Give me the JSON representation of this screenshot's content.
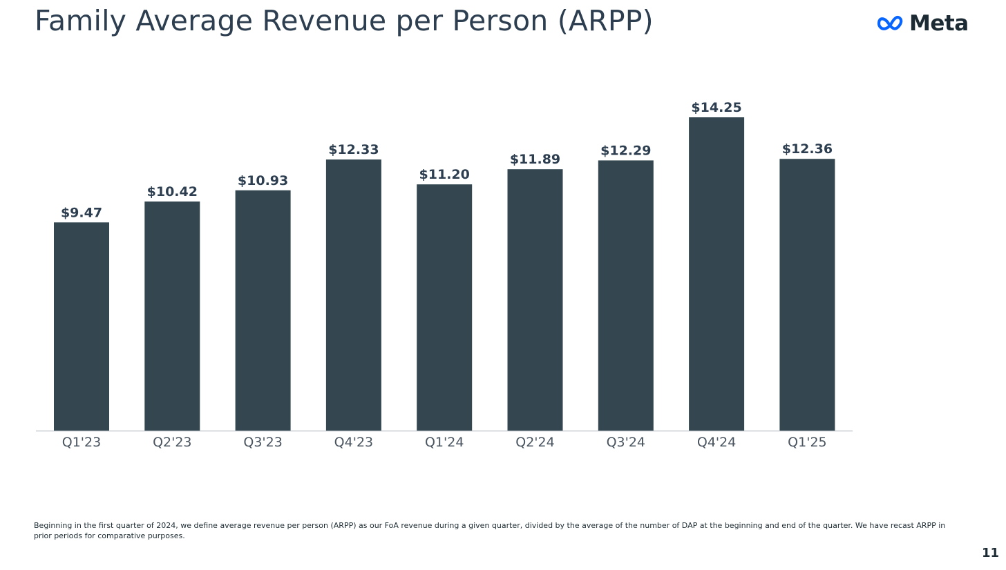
{
  "slide": {
    "title": "Family Average Revenue per Person (ARPP)",
    "logo_text": "Meta",
    "footnote": "Beginning in the first quarter of 2024, we define average revenue per person (ARPP) as our FoA revenue during a given quarter, divided by the average of the number of DAP at the beginning and end of the quarter. We have recast ARPP in prior periods for comparative purposes.",
    "page_number": "11"
  },
  "colors": {
    "bar": "#344751",
    "axis": "#c8cdd1",
    "logo_blue": "#0866ff"
  },
  "chart_data": {
    "type": "bar",
    "title": "",
    "xlabel": "",
    "ylabel": "",
    "categories": [
      "Q1'23",
      "Q2'23",
      "Q3'23",
      "Q4'23",
      "Q1'24",
      "Q2'24",
      "Q3'24",
      "Q4'24",
      "Q1'25"
    ],
    "values": [
      9.47,
      10.42,
      10.93,
      12.33,
      11.2,
      11.89,
      12.29,
      14.25,
      12.36
    ],
    "data_labels": [
      "$9.47",
      "$10.42",
      "$10.93",
      "$12.33",
      "$11.20",
      "$11.89",
      "$12.29",
      "$14.25",
      "$12.36"
    ],
    "ylim": [
      0,
      14.25
    ],
    "grid": false,
    "legend": "none"
  }
}
